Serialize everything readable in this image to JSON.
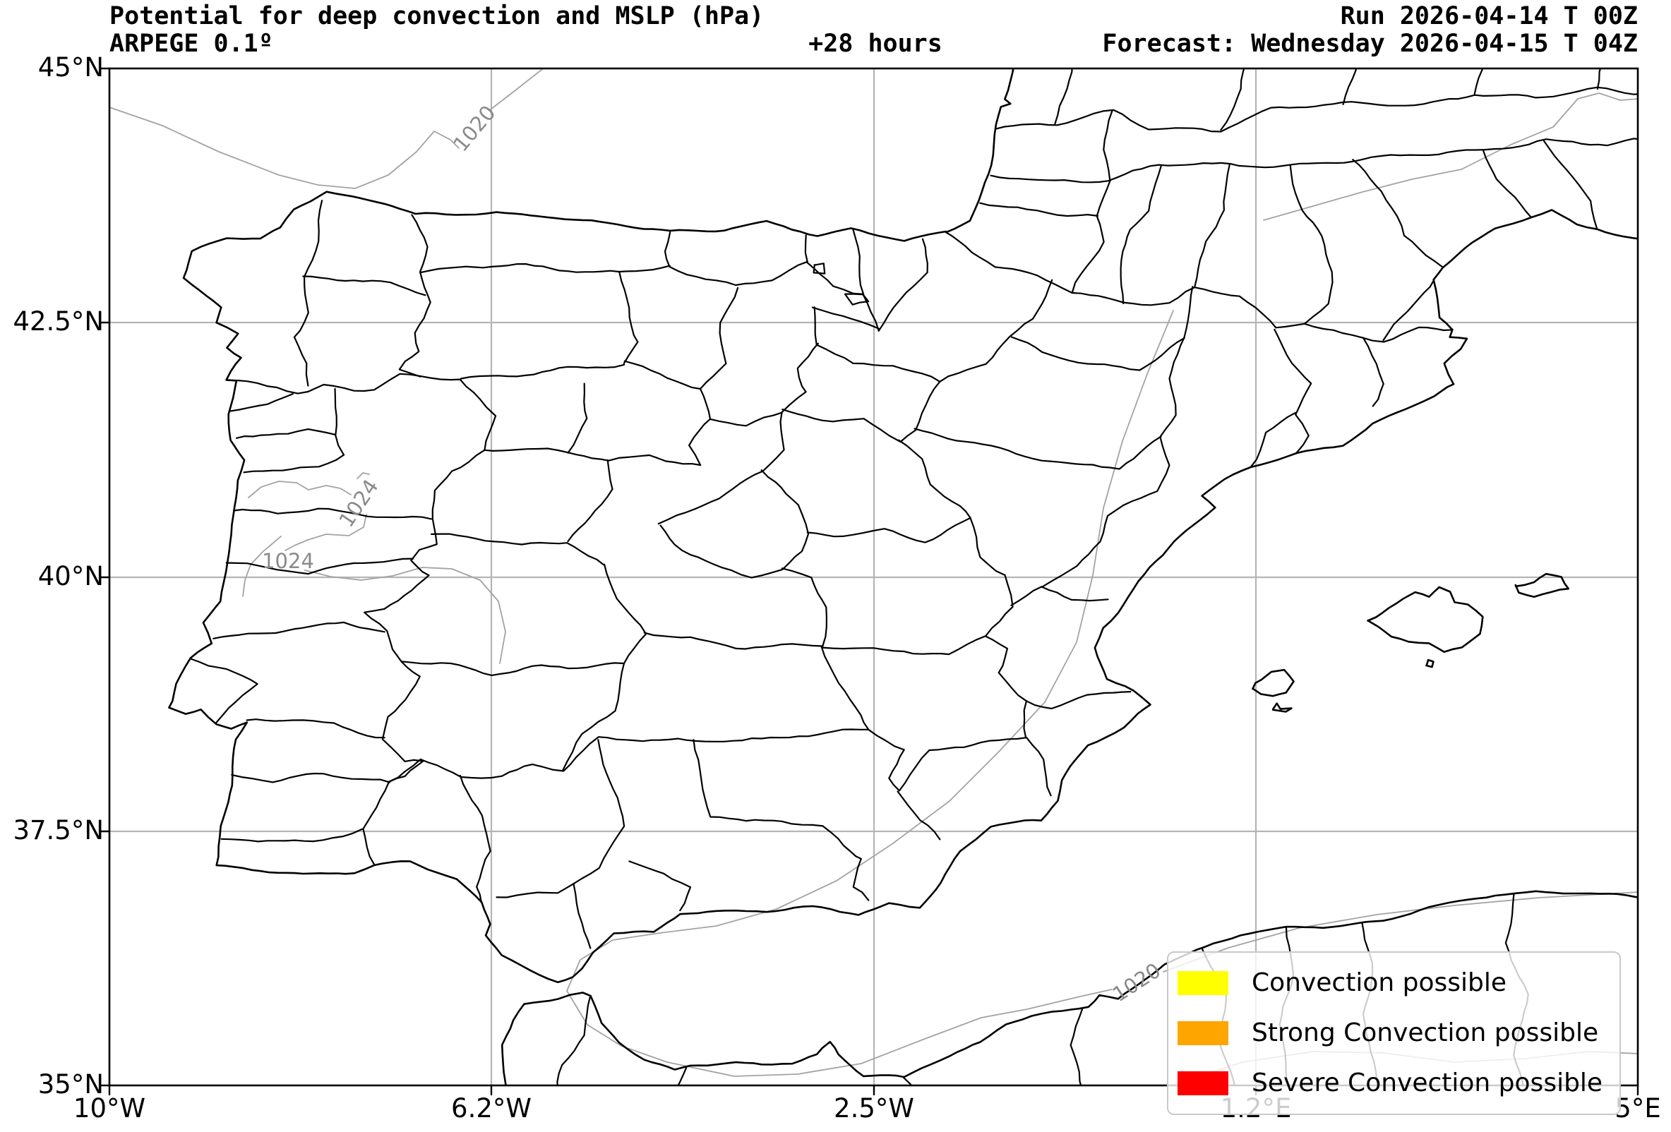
{
  "header": {
    "title": "Potential for deep convection and MSLP (hPa)",
    "model": "ARPEGE 0.1º",
    "lead": "+28 hours",
    "run": "Run 2026-04-14 T 00Z",
    "forecast": "Forecast: Wednesday 2026-04-15 T 04Z"
  },
  "map": {
    "x_ticks": [
      "10°W",
      "6.2°W",
      "2.5°W",
      "1.2°E",
      "5°E"
    ],
    "y_ticks": [
      "45°N",
      "42.5°N",
      "40°N",
      "37.5°N",
      "35°N"
    ],
    "contour_labels": [
      {
        "text": "1020",
        "value_hpa": 1020
      },
      {
        "text": "1024",
        "value_hpa": 1024
      },
      {
        "text": "1024",
        "value_hpa": 1024
      },
      {
        "text": "1020",
        "value_hpa": 1020
      }
    ]
  },
  "legend": {
    "items": [
      {
        "label": "Convection possible",
        "color": "#ffff00"
      },
      {
        "label": "Strong Convection possible",
        "color": "#ffa500"
      },
      {
        "label": "Severe Convection possible",
        "color": "#ff0000"
      }
    ]
  },
  "chart_data": {
    "type": "map",
    "title": "Potential for deep convection and MSLP (hPa)",
    "model": "ARPEGE 0.1º",
    "run": "2026-04-14 T 00Z",
    "forecast_valid": "Wednesday 2026-04-15 T 04Z",
    "lead_hours": 28,
    "extent": {
      "lon_min": -10,
      "lon_max": 5,
      "lat_min": 35,
      "lat_max": 45
    },
    "mslp_contour_values_hpa": [
      1020,
      1024
    ],
    "convection_areas_shown": [],
    "legend_position": "lower right",
    "grid": true
  }
}
